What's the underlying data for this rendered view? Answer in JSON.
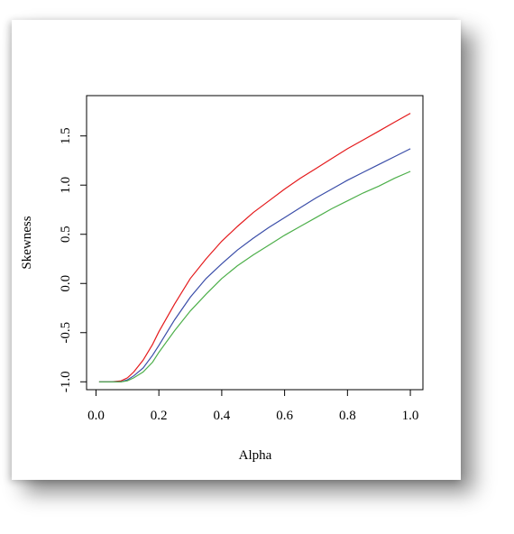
{
  "chart_data": {
    "type": "line",
    "title": "",
    "xlabel": "Alpha",
    "ylabel": "Skewness",
    "xlim": [
      -0.03,
      1.04
    ],
    "ylim": [
      -1.08,
      1.91
    ],
    "xticks": [
      0.0,
      0.2,
      0.4,
      0.6,
      0.8,
      1.0
    ],
    "xtick_labels": [
      "0.0",
      "0.2",
      "0.4",
      "0.6",
      "0.8",
      "1.0"
    ],
    "yticks": [
      -1.0,
      -0.5,
      0.0,
      0.5,
      1.0,
      1.5
    ],
    "ytick_labels": [
      "-1.0",
      "-0.5",
      "0.0",
      "0.5",
      "1.0",
      "1.5"
    ],
    "grid": false,
    "legend": "none",
    "x": [
      0.01,
      0.05,
      0.08,
      0.1,
      0.12,
      0.15,
      0.18,
      0.2,
      0.25,
      0.3,
      0.35,
      0.4,
      0.45,
      0.5,
      0.55,
      0.6,
      0.65,
      0.7,
      0.75,
      0.8,
      0.85,
      0.9,
      0.95,
      1.0
    ],
    "series": [
      {
        "color": "#e41a1c",
        "values": [
          -1.0,
          -1.0,
          -0.99,
          -0.96,
          -0.9,
          -0.78,
          -0.62,
          -0.49,
          -0.21,
          0.05,
          0.25,
          0.43,
          0.58,
          0.72,
          0.84,
          0.96,
          1.07,
          1.17,
          1.27,
          1.37,
          1.46,
          1.55,
          1.64,
          1.73
        ]
      },
      {
        "color": "#3a4da8",
        "values": [
          -1.0,
          -1.0,
          -1.0,
          -0.98,
          -0.94,
          -0.86,
          -0.73,
          -0.63,
          -0.37,
          -0.14,
          0.05,
          0.2,
          0.34,
          0.46,
          0.57,
          0.67,
          0.77,
          0.87,
          0.96,
          1.05,
          1.13,
          1.21,
          1.29,
          1.37
        ]
      },
      {
        "color": "#4daf4a",
        "values": [
          -1.0,
          -1.0,
          -1.0,
          -0.99,
          -0.96,
          -0.9,
          -0.8,
          -0.7,
          -0.48,
          -0.28,
          -0.11,
          0.05,
          0.18,
          0.29,
          0.39,
          0.49,
          0.58,
          0.67,
          0.76,
          0.84,
          0.92,
          0.99,
          1.07,
          1.14
        ]
      }
    ]
  }
}
